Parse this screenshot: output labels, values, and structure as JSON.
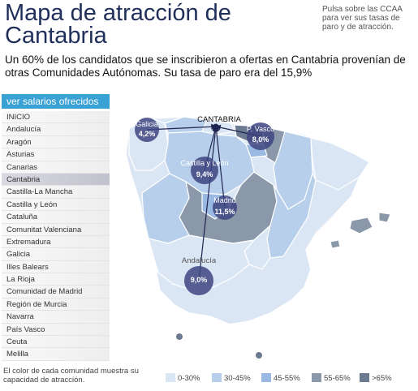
{
  "header": {
    "title": "Mapa de atracción de Cantabria",
    "side_note": "Pulsa sobre las CCAA para ver sus tasas de paro y de atracción.",
    "subtitle": "Un 60% de los candidatos que se inscribieron a ofertas en Cantabria provenían de otras Comunidades Autónomas. Su tasa de paro era del 15,9%"
  },
  "menu": {
    "header": "ver salarios ofrecidos",
    "selected": "Cantabria",
    "items": [
      "INICIO",
      "Andalucía",
      "Aragón",
      "Asturias",
      "Canarias",
      "Cantabria",
      "Castilla-La Mancha",
      "Castilla y León",
      "Cataluña",
      "Comunitat Valenciana",
      "Extremadura",
      "Galicia",
      "Illes Balears",
      "La Rioja",
      "Comunidad de Madrid",
      "Región de Murcia",
      "Navarra",
      "País Vasco",
      "Ceuta",
      "Melilla"
    ]
  },
  "footer": {
    "note": "El color de cada comunidad muestra su capacidad de atracción."
  },
  "map": {
    "origin": "CANTABRIA",
    "bubbles": [
      {
        "region": "Galicia",
        "value": "4,2%"
      },
      {
        "region": "P. Vasco",
        "value": "8,0%"
      },
      {
        "region": "Castilla y León",
        "value": "9,4%"
      },
      {
        "region": "Madrid",
        "value": "11,5%"
      },
      {
        "region": "Andalucía",
        "value": "9,0%"
      }
    ],
    "colors": {
      "c0_30": "#dbe6f4",
      "c30_45": "#b7cfea",
      "c45_55": "#99b9e2",
      "c55_65": "#8a98aa",
      "c65": "#6b7a90",
      "bubble": "#3d4480",
      "arrow": "#1f2350"
    }
  },
  "legend": [
    {
      "label": "0-30%",
      "color": "#dbe6f4"
    },
    {
      "label": "30-45%",
      "color": "#b7cfea"
    },
    {
      "label": "45-55%",
      "color": "#99b9e2"
    },
    {
      "label": "55-65%",
      "color": "#8a98aa"
    },
    {
      "label": ">65%",
      "color": "#6b7a90"
    }
  ]
}
